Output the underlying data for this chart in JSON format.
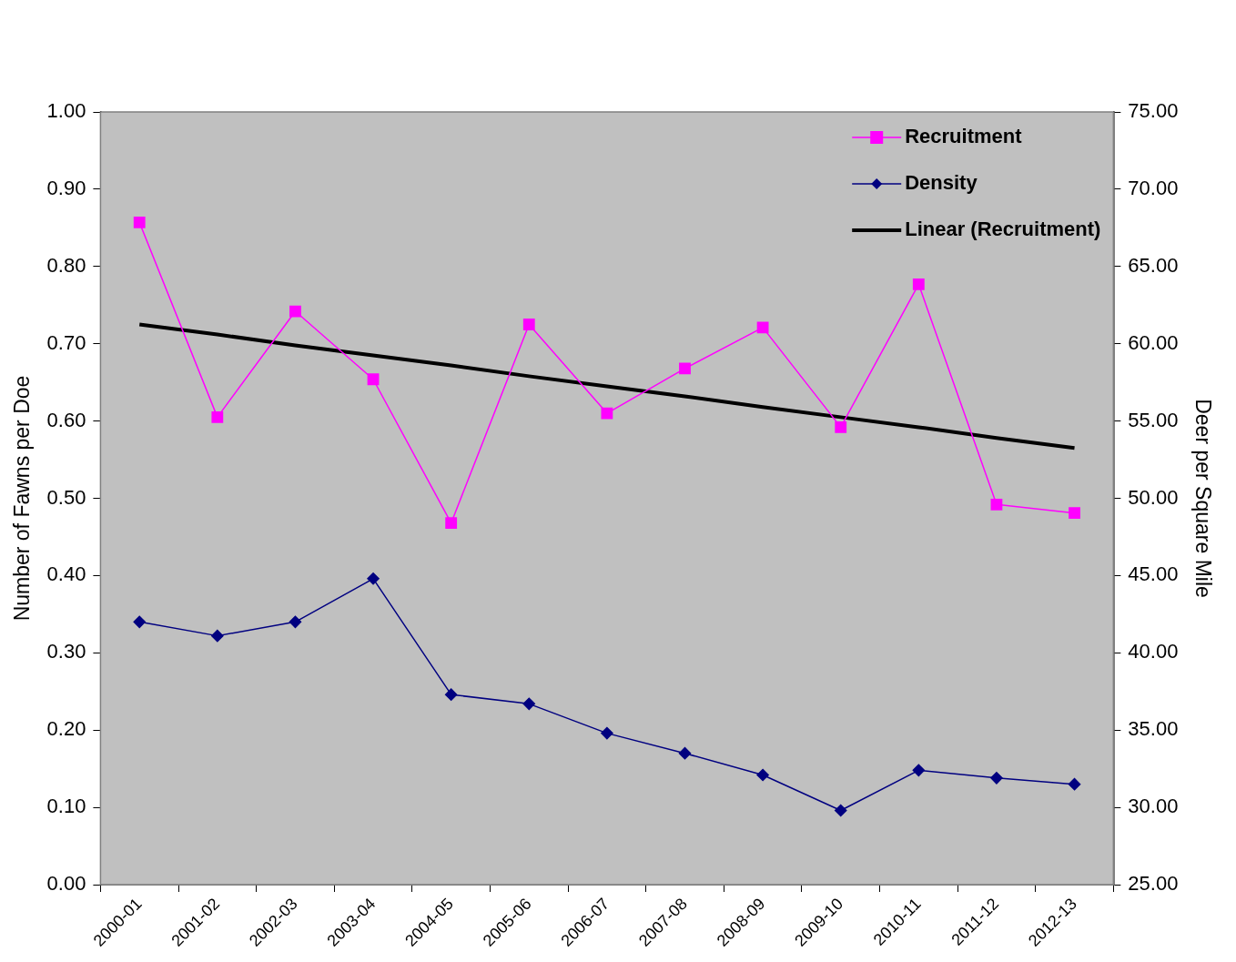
{
  "chart_data": {
    "type": "line",
    "ylabel": "Number of Fawns per Doe",
    "y2label": "Deer per Square Mile",
    "categories": [
      "2000-01",
      "2001-02",
      "2002-03",
      "2003-04",
      "2004-05",
      "2005-06",
      "2006-07",
      "2007-08",
      "2008-09",
      "2009-10",
      "2010-11",
      "2011-12",
      "2012-13"
    ],
    "series": [
      {
        "name": "Recruitment",
        "color": "#ff00ff",
        "marker": "square",
        "values": [
          0.857,
          0.605,
          0.742,
          0.654,
          0.468,
          0.725,
          0.61,
          0.668,
          0.721,
          0.592,
          0.777,
          0.492,
          0.481
        ]
      },
      {
        "name": "Density",
        "color": "#000080",
        "marker": "diamond",
        "axis": "y2",
        "values": [
          42.0,
          41.1,
          42.0,
          44.8,
          37.3,
          36.7,
          34.8,
          33.5,
          32.1,
          29.8,
          32.4,
          31.9,
          31.5
        ]
      },
      {
        "name": "Linear (Recruitment)",
        "color": "#000000",
        "marker": "none",
        "values": [
          0.725,
          0.712,
          0.698,
          0.685,
          0.672,
          0.658,
          0.645,
          0.632,
          0.618,
          0.605,
          0.592,
          0.578,
          0.565
        ]
      }
    ],
    "ylim": [
      0,
      1
    ],
    "yticks": [
      {
        "value": 0,
        "label": "0.00"
      },
      {
        "value": 0.1,
        "label": "0.10"
      },
      {
        "value": 0.2,
        "label": "0.20"
      },
      {
        "value": 0.3,
        "label": "0.30"
      },
      {
        "value": 0.4,
        "label": "0.40"
      },
      {
        "value": 0.5,
        "label": "0.50"
      },
      {
        "value": 0.6,
        "label": "0.60"
      },
      {
        "value": 0.7,
        "label": "0.70"
      },
      {
        "value": 0.8,
        "label": "0.80"
      },
      {
        "value": 0.9,
        "label": "0.90"
      },
      {
        "value": 1,
        "label": "1.00"
      }
    ],
    "y2lim": [
      25,
      75
    ],
    "y2ticks": [
      {
        "value": 25,
        "label": "25.00"
      },
      {
        "value": 30,
        "label": "30.00"
      },
      {
        "value": 35,
        "label": "35.00"
      },
      {
        "value": 40,
        "label": "40.00"
      },
      {
        "value": 45,
        "label": "45.00"
      },
      {
        "value": 50,
        "label": "50.00"
      },
      {
        "value": 55,
        "label": "55.00"
      },
      {
        "value": 60,
        "label": "60.00"
      },
      {
        "value": 65,
        "label": "65.00"
      },
      {
        "value": 70,
        "label": "70.00"
      },
      {
        "value": 75,
        "label": "75.00"
      }
    ],
    "grid": false,
    "legend": "top right"
  }
}
